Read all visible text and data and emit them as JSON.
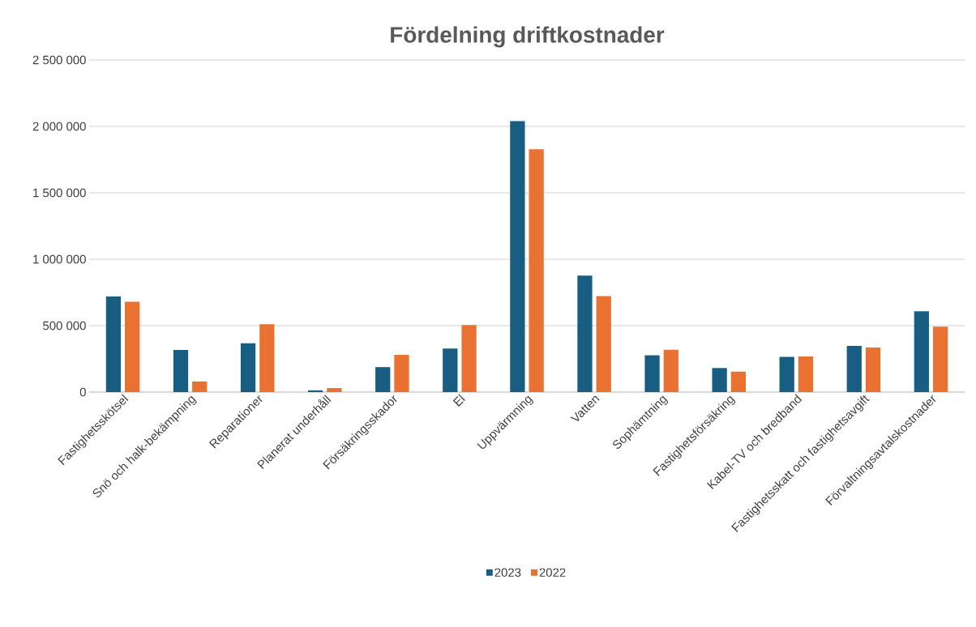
{
  "chart_data": {
    "type": "bar",
    "title": "Fördelning driftkostnader",
    "categories": [
      "Fastighetsskötsel",
      "Snö och halk-bekämpning",
      "Reparationer",
      "Planerat underhåll",
      "Försäkringsskador",
      "El",
      "Uppvärmning",
      "Vatten",
      "Sophämtning",
      "Fastighetsförsäkring",
      "Kabel-TV och bredband",
      "Fastighetsskatt och fastighetsavgift",
      "Förvaltningsavtalskostnader"
    ],
    "series": [
      {
        "name": "2023",
        "color": "#175e82",
        "values": [
          720000,
          317000,
          368000,
          13000,
          188000,
          328000,
          2039000,
          876000,
          277000,
          181000,
          265000,
          348000,
          608000
        ]
      },
      {
        "name": "2022",
        "color": "#e97132",
        "values": [
          680000,
          80000,
          510000,
          30000,
          280000,
          505000,
          1828000,
          722000,
          319000,
          154000,
          268000,
          336000,
          492000
        ]
      }
    ],
    "ylim": [
      0,
      2500000
    ],
    "yticks": [
      {
        "value": 0,
        "label": "0"
      },
      {
        "value": 500000,
        "label": "500 000"
      },
      {
        "value": 1000000,
        "label": "1 000 000"
      },
      {
        "value": 1500000,
        "label": "1 500 000"
      },
      {
        "value": 2000000,
        "label": "2 000 000"
      },
      {
        "value": 2500000,
        "label": "2 500 000"
      }
    ],
    "grid": "y",
    "legend": "bottom"
  }
}
